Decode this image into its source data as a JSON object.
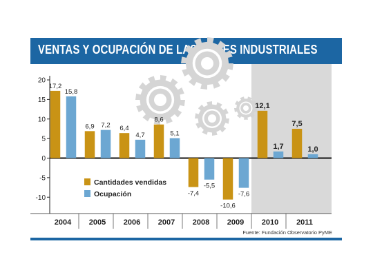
{
  "title": "VENTAS Y OCUPACIÓN DE LAS PYMES INDUSTRIALES",
  "source": "Fuente: Fundación Observatorio PyME",
  "colors": {
    "title_bar": "#1c66a3",
    "series_1": "#c99315",
    "series_2": "#6ca7d2",
    "highlight": "#d9d9d9",
    "gears": "#d5d5d5"
  },
  "chart_data": {
    "type": "bar",
    "title": "VENTAS Y OCUPACIÓN DE LAS PYMES INDUSTRIALES",
    "categories": [
      "2004",
      "2005",
      "2006",
      "2007",
      "2008",
      "2009",
      "2010",
      "2011"
    ],
    "series": [
      {
        "name": "Cantidades vendidas",
        "color": "#c99315",
        "values": [
          17.2,
          6.9,
          6.4,
          8.6,
          -7.4,
          -10.6,
          12.1,
          7.5
        ],
        "labels": [
          "17,2",
          "6,9",
          "6,4",
          "8,6",
          "-7,4",
          "-10,6",
          "12,1",
          "7,5"
        ]
      },
      {
        "name": "Ocupación",
        "color": "#6ca7d2",
        "values": [
          15.8,
          7.2,
          4.7,
          5.1,
          -5.5,
          -7.6,
          1.7,
          1.0
        ],
        "labels": [
          "15,8",
          "7,2",
          "4,7",
          "5,1",
          "-5,5",
          "-7,6",
          "1,7",
          "1,0"
        ]
      }
    ],
    "ylim": [
      -13,
      20
    ],
    "yticks": [
      20,
      15,
      10,
      5,
      0,
      -5,
      -10
    ],
    "highlighted_categories": [
      "2010",
      "2011"
    ],
    "bold_labels_categories": [
      "2010",
      "2011"
    ],
    "legend": "left, inside plot below zero line",
    "grid": false,
    "xlabel": "",
    "ylabel": ""
  }
}
